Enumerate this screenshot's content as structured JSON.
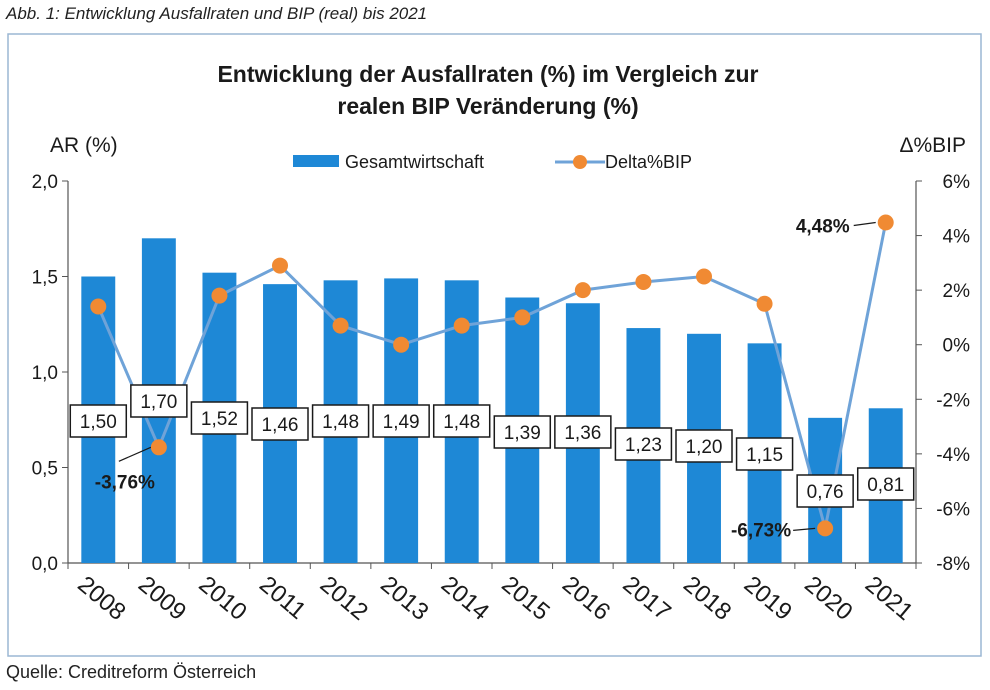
{
  "caption": "Abb. 1: Entwicklung Ausfallraten und BIP (real) bis 2021",
  "source": "Quelle: Creditreform Österreich",
  "colors": {
    "bar": "#1E88D6",
    "line": "#6FA3D8",
    "marker": "#F08A33",
    "frame_bg": "#FFFFFF",
    "frame_border": "#9BB7D4"
  },
  "chart_data": {
    "type": "bar",
    "title_line1": "Entwicklung der Ausfallraten (%) im Vergleich zur",
    "title_line2": "realen BIP Veränderung (%)",
    "ylabel_left": "AR (%)",
    "ylabel_right": "Δ%BIP",
    "legend": {
      "bars": "Gesamtwirtschaft",
      "line": "Delta%BIP",
      "position": "top-center"
    },
    "categories": [
      "2008",
      "2009",
      "2010",
      "2011",
      "2012",
      "2013",
      "2014",
      "2015",
      "2016",
      "2017",
      "2018",
      "2019",
      "2020",
      "2021"
    ],
    "series": [
      {
        "name": "Gesamtwirtschaft",
        "type": "bar",
        "axis": "left",
        "values": [
          1.5,
          1.7,
          1.52,
          1.46,
          1.48,
          1.49,
          1.48,
          1.39,
          1.36,
          1.23,
          1.2,
          1.15,
          0.76,
          0.81
        ],
        "labels": [
          "1,50",
          "1,70",
          "1,52",
          "1,46",
          "1,48",
          "1,49",
          "1,48",
          "1,39",
          "1,36",
          "1,23",
          "1,20",
          "1,15",
          "0,76",
          "0,81"
        ]
      },
      {
        "name": "Delta%BIP",
        "type": "line",
        "axis": "right",
        "values": [
          1.4,
          -3.76,
          1.8,
          2.9,
          0.7,
          0.0,
          0.7,
          1.0,
          2.0,
          2.3,
          2.5,
          1.5,
          -6.73,
          4.48
        ]
      }
    ],
    "point_annotations": [
      {
        "index": 1,
        "text": "-3,76%"
      },
      {
        "index": 12,
        "text": "-6,73%"
      },
      {
        "index": 13,
        "text": "4,48%"
      }
    ],
    "left_axis": {
      "min": 0,
      "max": 2,
      "ticks": [
        "0,0",
        "0,5",
        "1,0",
        "1,5",
        "2,0"
      ]
    },
    "right_axis": {
      "min": -8,
      "max": 6,
      "ticks": [
        "-8%",
        "-6%",
        "-4%",
        "-2%",
        "0%",
        "2%",
        "4%",
        "6%"
      ]
    }
  }
}
